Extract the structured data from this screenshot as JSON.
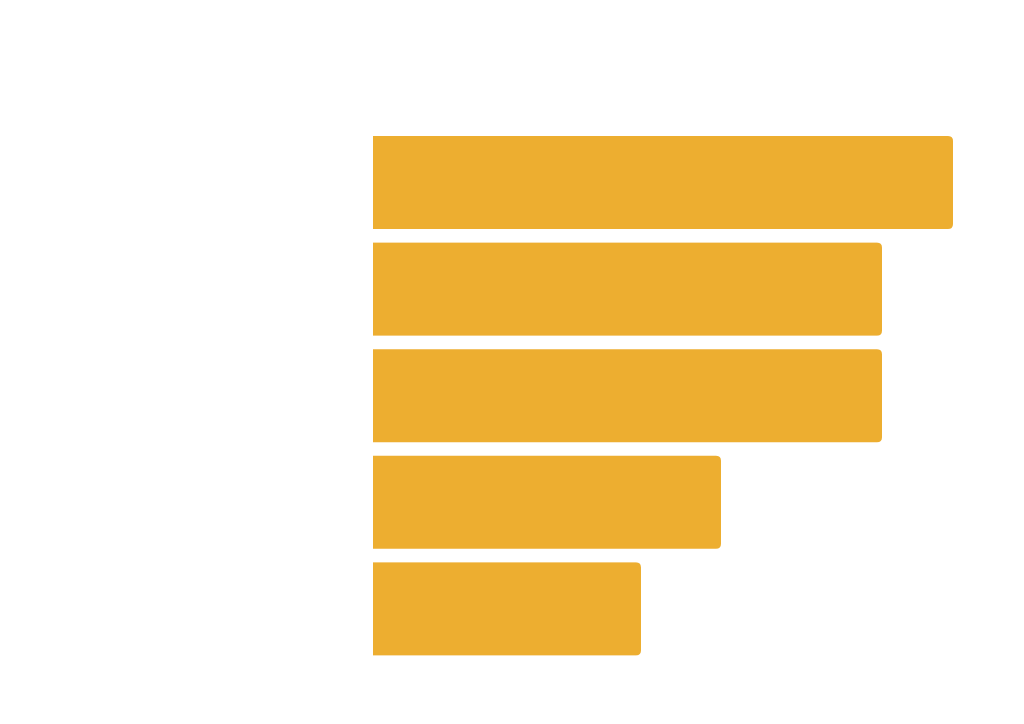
{
  "chart_data": {
    "type": "bar",
    "orientation": "horizontal",
    "title": "",
    "xlabel": "",
    "ylabel": "",
    "categories": [
      "",
      "",
      "",
      "",
      ""
    ],
    "values": [
      580,
      509,
      509,
      348,
      268
    ],
    "xlim": [
      0,
      600
    ],
    "grid": false,
    "legend": "none",
    "bar_color": "#EDAE30",
    "background_color": "#FFFFFF"
  }
}
